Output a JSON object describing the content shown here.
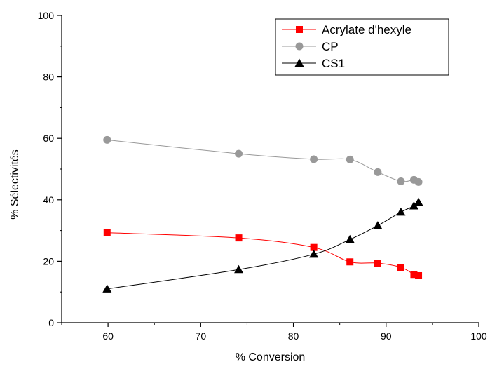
{
  "chart_data": {
    "type": "line",
    "xlabel": "% Conversion",
    "ylabel": "% Sélectivités",
    "xlim": [
      55,
      100
    ],
    "ylim": [
      0,
      100
    ],
    "x_ticks": [
      60,
      70,
      80,
      90,
      100
    ],
    "y_ticks": [
      0,
      20,
      40,
      60,
      80,
      100
    ],
    "grid": false,
    "legend_position": "top-right",
    "series": [
      {
        "name": "Acrylate d'hexyle",
        "marker": "square",
        "color": "#ff0000",
        "x": [
          59.9,
          74.1,
          82.2,
          86.1,
          89.1,
          91.6,
          93.0,
          93.5
        ],
        "y": [
          29.3,
          27.6,
          24.5,
          19.8,
          19.4,
          18.0,
          15.7,
          15.3
        ]
      },
      {
        "name": "CP",
        "marker": "circle",
        "color": "#999999",
        "x": [
          59.9,
          74.1,
          82.2,
          86.1,
          89.1,
          91.6,
          93.0,
          93.5
        ],
        "y": [
          59.5,
          55.0,
          53.2,
          53.1,
          49.0,
          46.0,
          46.5,
          45.8
        ]
      },
      {
        "name": "CS1",
        "marker": "triangle",
        "color": "#000000",
        "x": [
          59.9,
          74.1,
          82.2,
          86.1,
          89.1,
          91.6,
          93.0,
          93.5
        ],
        "y": [
          11.0,
          17.3,
          22.3,
          27.1,
          31.6,
          36.0,
          38.0,
          39.2
        ]
      }
    ]
  }
}
